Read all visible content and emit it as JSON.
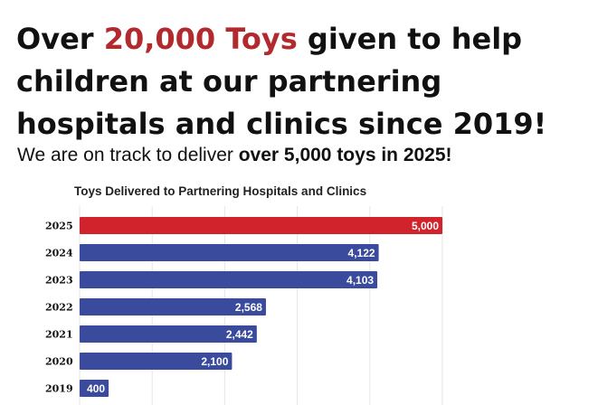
{
  "headline": {
    "prefix": "Over ",
    "highlight": "20,000 Toys",
    "rest": " given to help children at our partnering hospitals and clinics since 2019!"
  },
  "subhead": {
    "prefix": "We are on track to deliver ",
    "bold": "over 5,000 toys in 2025!"
  },
  "colors": {
    "accent": "#b22a2e",
    "bar_highlight": "#d0232b",
    "bar_default": "#3a4a9c",
    "grid": "#e6e6e6"
  },
  "chart_data": {
    "type": "bar",
    "orientation": "horizontal",
    "title": "Toys Delivered to Partnering Hospitals and Clinics",
    "xlabel": "",
    "ylabel": "",
    "categories": [
      "2025",
      "2024",
      "2023",
      "2022",
      "2021",
      "2020",
      "2019"
    ],
    "values": [
      5000,
      4122,
      4103,
      2568,
      2442,
      2100,
      400
    ],
    "data_labels": [
      "5,000",
      "4,122",
      "4,103",
      "2,568",
      "2,442",
      "2,100",
      "400"
    ],
    "highlight_category": "2025",
    "xlim": [
      0,
      5000
    ],
    "grid": true,
    "legend": "none"
  }
}
